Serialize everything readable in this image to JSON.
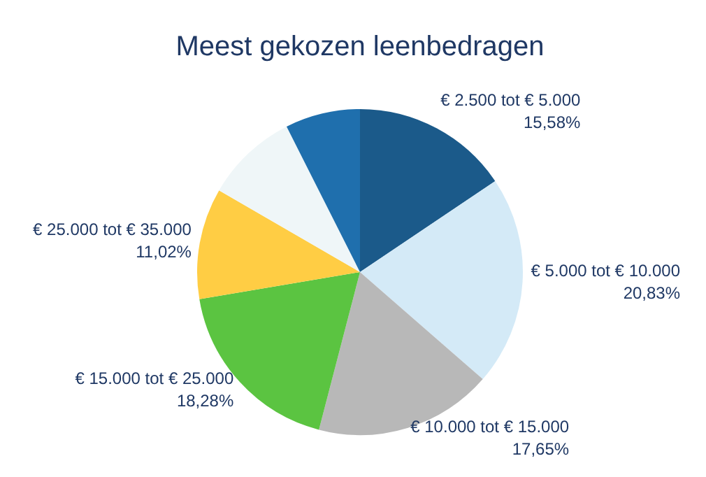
{
  "chart_data": {
    "type": "pie",
    "title": "Meest gekozen leenbedragen",
    "categories": [
      "€ 2.500 tot € 5.000",
      "€ 5.000 tot € 10.000",
      "€ 10.000 tot € 15.000",
      "€ 15.000 tot € 25.000",
      "€ 25.000 tot € 35.000",
      null,
      null
    ],
    "values": [
      15.58,
      20.83,
      17.65,
      18.28,
      11.02,
      9.2,
      7.44
    ],
    "value_labels": [
      "15,58%",
      "20,83%",
      "17,65%",
      "18,28%",
      "11,02%",
      null,
      null
    ],
    "colors": [
      "#1b5a8a",
      "#d4eaf7",
      "#b8b8b8",
      "#5bc441",
      "#ffcd44",
      "#eff6f8",
      "#1f6fad"
    ],
    "legend": false
  }
}
